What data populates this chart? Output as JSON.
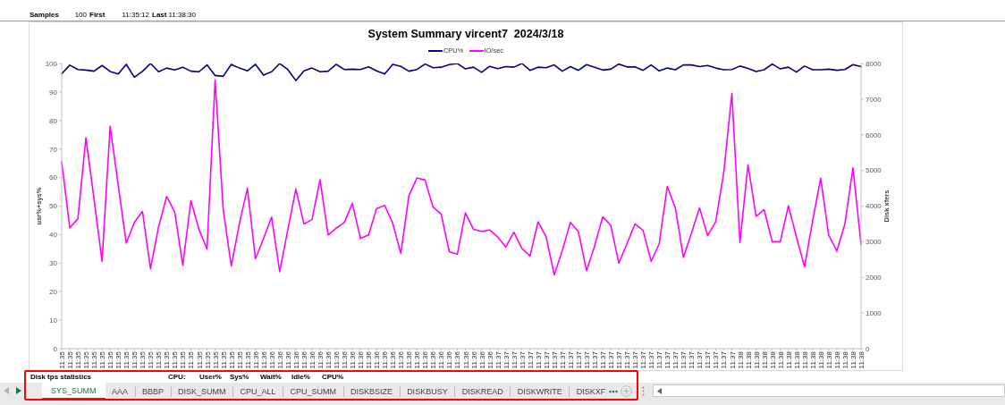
{
  "chart_data": {
    "type": "line",
    "title": "System Summary vircent7  2024/3/18",
    "ylabel": "usr%+sys%",
    "y2label": "Disk xfers",
    "categories": [
      "11:35",
      "11:35",
      "11:35",
      "11:35",
      "11:35",
      "11:35",
      "11:35",
      "11:35",
      "11:35",
      "11:35",
      "11:35",
      "11:35",
      "11:35",
      "11:35",
      "11:35",
      "11:35",
      "11:35",
      "11:35",
      "11:35",
      "11:35",
      "11:35",
      "11:35",
      "11:35",
      "11:35",
      "11:36",
      "11:36",
      "11:36",
      "11:36",
      "11:36",
      "11:36",
      "11:36",
      "11:36",
      "11:36",
      "11:36",
      "11:36",
      "11:36",
      "11:36",
      "11:36",
      "11:36",
      "11:36",
      "11:36",
      "11:36",
      "11:36",
      "11:36",
      "11:36",
      "11:36",
      "11:36",
      "11:36",
      "11:36",
      "11:36",
      "11:36",
      "11:36",
      "11:36",
      "11:36",
      "11:37",
      "11:37",
      "11:37",
      "11:37",
      "11:37",
      "11:37",
      "11:37",
      "11:37",
      "11:37",
      "11:37",
      "11:37",
      "11:37",
      "11:37",
      "11:37",
      "11:37",
      "11:37",
      "11:37",
      "11:37",
      "11:37",
      "11:37",
      "11:37",
      "11:37",
      "11:37",
      "11:37",
      "11:37",
      "11:37",
      "11:37",
      "11:37",
      "11:37",
      "11:37",
      "11:38",
      "11:38",
      "11:38",
      "11:38",
      "11:38",
      "11:38",
      "11:38",
      "11:38",
      "11:38",
      "11:38",
      "11:38",
      "11:38",
      "11:38",
      "11:38",
      "11:38",
      "11:38"
    ],
    "series": [
      {
        "name": "CPU%",
        "color": "#000080",
        "values": [
          96.4,
          99.4,
          97.9,
          97.7,
          97.3,
          99.3,
          97.2,
          96.3,
          99.7,
          95.2,
          97.2,
          100,
          97.1,
          98.4,
          97.7,
          98.7,
          97.3,
          97.1,
          99.5,
          95.8,
          95.5,
          99.7,
          98.4,
          97.4,
          99.7,
          95.9,
          97.1,
          100,
          97.9,
          94.0,
          97.4,
          98.4,
          97.1,
          97.3,
          99.7,
          97.9,
          98.0,
          97.9,
          98.8,
          97.4,
          96.3,
          99.7,
          99.0,
          97.3,
          97.9,
          99.8,
          98.5,
          98.7,
          99.6,
          100,
          98.1,
          98.7,
          96.9,
          99.0,
          98.2,
          98.9,
          98.7,
          100,
          97.6,
          98.7,
          98.5,
          99.5,
          97.3,
          98.9,
          97.6,
          99.6,
          98.7,
          97.7,
          98.0,
          99.8,
          98.8,
          98.8,
          97.6,
          99.5,
          97.4,
          98.4,
          97.8,
          99.5,
          99.5,
          98.9,
          99.3,
          98.4,
          97.8,
          97.9,
          99.1,
          98.3,
          97.2,
          97.8,
          99.8,
          98.1,
          98.7,
          97.0,
          99.1,
          97.8,
          97.8,
          98.0,
          97.6,
          97.9,
          99.6,
          98.9
        ]
      },
      {
        "name": "IO/sec",
        "color": "#ff00ff",
        "axis": "y2",
        "values": [
          5240,
          3390,
          3640,
          5920,
          4200,
          2450,
          6240,
          4580,
          2960,
          3540,
          3850,
          2240,
          3420,
          4270,
          3830,
          2340,
          4150,
          3350,
          2790,
          7540,
          3920,
          2320,
          3500,
          4500,
          2520,
          3090,
          3690,
          2160,
          3330,
          4480,
          3500,
          3620,
          4740,
          3190,
          3380,
          3540,
          4080,
          3090,
          3190,
          3930,
          4020,
          3520,
          2670,
          4290,
          4790,
          4730,
          3970,
          3770,
          2720,
          2650,
          3810,
          3350,
          3290,
          3330,
          3130,
          2850,
          3270,
          2810,
          2600,
          3560,
          3140,
          2070,
          2750,
          3540,
          3280,
          2190,
          2880,
          3700,
          3460,
          2400,
          2940,
          3500,
          3320,
          2450,
          2940,
          4550,
          3950,
          2560,
          3250,
          3950,
          3170,
          3560,
          4950,
          7160,
          2980,
          5160,
          3710,
          3900,
          3000,
          3000,
          4010,
          3130,
          2300,
          3580,
          4780,
          3180,
          2740,
          3500,
          5070,
          2920
        ]
      }
    ],
    "ylim": [
      0,
      100
    ],
    "yticks": [
      0,
      10,
      20,
      30,
      40,
      50,
      60,
      70,
      80,
      90,
      100
    ],
    "y2lim": [
      0,
      8000
    ],
    "y2ticks": [
      0,
      1000,
      2000,
      3000,
      4000,
      5000,
      6000,
      7000,
      8000
    ],
    "legend": "top",
    "annotations": [
      "Samples",
      "100",
      "First",
      "11:35:12",
      "Last",
      "11:38:30",
      "Disk tps statistics",
      "CPU:",
      "User%",
      "Sys%",
      "Wait%",
      "Idle%",
      "CPU%",
      "SYS_SUMM",
      "AAA",
      "BBBP",
      "DISK_SUMM",
      "CPU_ALL",
      "CPU_SUMM",
      "DISKBSIZE",
      "DISKBUSY",
      "DISKREAD",
      "DISKWRITE",
      "DISKXF"
    ]
  }
}
